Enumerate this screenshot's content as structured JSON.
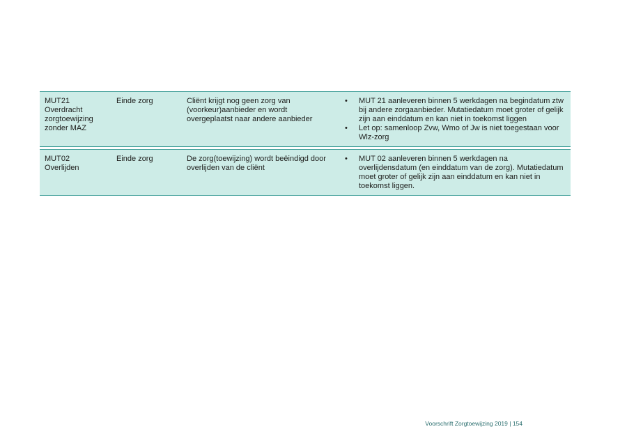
{
  "colors": {
    "table_fill": "#cdece7",
    "table_border": "#3f9e98",
    "body_text": "#1d1d1b",
    "footer_text": "#2a6e6e"
  },
  "table": {
    "rows": [
      {
        "code_lines": [
          "MUT21",
          "Overdracht",
          "zorgtoewijzing",
          "zonder MAZ"
        ],
        "phase": "Einde zorg",
        "description": "Cliënt krijgt nog geen zorg van (voorkeur)aanbieder en wordt overgeplaatst naar andere aanbieder",
        "bullet_glyph": "•",
        "bullets": [
          "MUT 21 aanleveren binnen 5 werkdagen na begindatum ztw bij andere zorgaanbieder. Mutatiedatum moet groter of gelijk zijn aan einddatum en kan niet in toekomst liggen",
          "Let op: samenloop Zvw, Wmo of Jw is niet toegestaan voor Wlz-zorg"
        ]
      },
      {
        "code_lines": [
          "MUT02",
          "Overlijden"
        ],
        "phase": "Einde zorg",
        "description": "De zorg(toewijzing) wordt beëindigd door overlijden van de cliënt",
        "bullet_glyph": "•",
        "bullets": [
          "MUT 02 aanleveren binnen 5 werkdagen na overlijdensdatum (en einddatum van de zorg). Mutatiedatum moet groter of gelijk zijn aan einddatum en kan niet in toekomst liggen."
        ]
      }
    ]
  },
  "footer": {
    "text": "Voorschrift Zorgtoewijzing 2019 | 154"
  }
}
